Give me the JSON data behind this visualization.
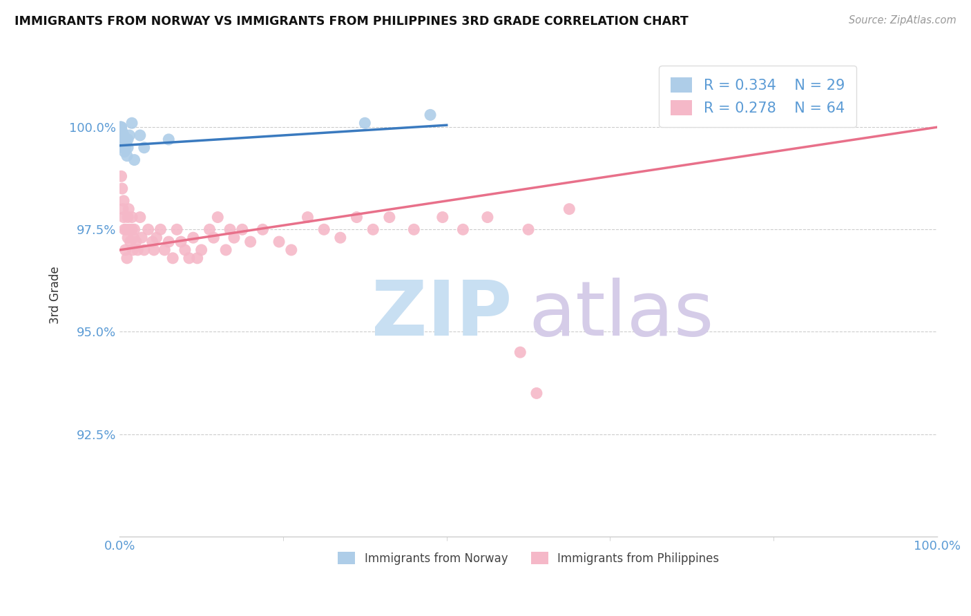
{
  "title": "IMMIGRANTS FROM NORWAY VS IMMIGRANTS FROM PHILIPPINES 3RD GRADE CORRELATION CHART",
  "source_text": "Source: ZipAtlas.com",
  "ylabel": "3rd Grade",
  "xlim": [
    0.0,
    1.0
  ],
  "ylim": [
    90.0,
    101.8
  ],
  "yticks": [
    92.5,
    95.0,
    97.5,
    100.0
  ],
  "ytick_labels": [
    "92.5%",
    "95.0%",
    "97.5%",
    "100.0%"
  ],
  "xtick_labels": [
    "0.0%",
    "100.0%"
  ],
  "norway_color": "#aecde8",
  "philippines_color": "#f5b8c8",
  "norway_R": 0.334,
  "norway_N": 29,
  "philippines_R": 0.278,
  "philippines_N": 64,
  "norway_line_color": "#3a7abf",
  "philippines_line_color": "#e8708a",
  "tick_color": "#5b9bd5",
  "grid_color": "#cccccc",
  "norway_line_x": [
    0.0,
    0.4
  ],
  "norway_line_y": [
    99.55,
    100.05
  ],
  "philippines_line_x": [
    0.0,
    1.0
  ],
  "philippines_line_y": [
    97.0,
    100.0
  ],
  "norway_scatter_x": [
    0.001,
    0.001,
    0.002,
    0.002,
    0.002,
    0.002,
    0.002,
    0.003,
    0.003,
    0.003,
    0.003,
    0.004,
    0.004,
    0.005,
    0.005,
    0.006,
    0.007,
    0.008,
    0.009,
    0.01,
    0.01,
    0.012,
    0.015,
    0.018,
    0.025,
    0.03,
    0.06,
    0.3,
    0.38
  ],
  "norway_scatter_y": [
    100.0,
    100.0,
    100.0,
    100.0,
    99.9,
    99.8,
    99.7,
    99.9,
    99.8,
    99.7,
    99.6,
    99.5,
    99.6,
    99.8,
    99.5,
    99.4,
    99.5,
    99.6,
    99.3,
    99.5,
    99.7,
    99.8,
    100.1,
    99.2,
    99.8,
    99.5,
    99.7,
    100.1,
    100.3
  ],
  "philippines_scatter_x": [
    0.002,
    0.003,
    0.004,
    0.005,
    0.005,
    0.006,
    0.007,
    0.008,
    0.009,
    0.01,
    0.01,
    0.011,
    0.012,
    0.013,
    0.015,
    0.015,
    0.016,
    0.017,
    0.018,
    0.02,
    0.022,
    0.025,
    0.027,
    0.03,
    0.035,
    0.04,
    0.042,
    0.045,
    0.05,
    0.055,
    0.06,
    0.065,
    0.07,
    0.075,
    0.08,
    0.085,
    0.09,
    0.095,
    0.1,
    0.11,
    0.115,
    0.12,
    0.13,
    0.135,
    0.14,
    0.15,
    0.16,
    0.175,
    0.195,
    0.21,
    0.23,
    0.25,
    0.27,
    0.29,
    0.31,
    0.33,
    0.36,
    0.395,
    0.42,
    0.45,
    0.5,
    0.55,
    0.49,
    0.51
  ],
  "philippines_scatter_y": [
    98.8,
    98.5,
    98.0,
    97.8,
    98.2,
    97.5,
    97.0,
    97.5,
    96.8,
    97.3,
    97.8,
    98.0,
    97.5,
    97.2,
    97.5,
    97.8,
    97.0,
    97.3,
    97.5,
    97.2,
    97.0,
    97.8,
    97.3,
    97.0,
    97.5,
    97.2,
    97.0,
    97.3,
    97.5,
    97.0,
    97.2,
    96.8,
    97.5,
    97.2,
    97.0,
    96.8,
    97.3,
    96.8,
    97.0,
    97.5,
    97.3,
    97.8,
    97.0,
    97.5,
    97.3,
    97.5,
    97.2,
    97.5,
    97.2,
    97.0,
    97.8,
    97.5,
    97.3,
    97.8,
    97.5,
    97.8,
    97.5,
    97.8,
    97.5,
    97.8,
    97.5,
    98.0,
    94.5,
    93.5
  ]
}
